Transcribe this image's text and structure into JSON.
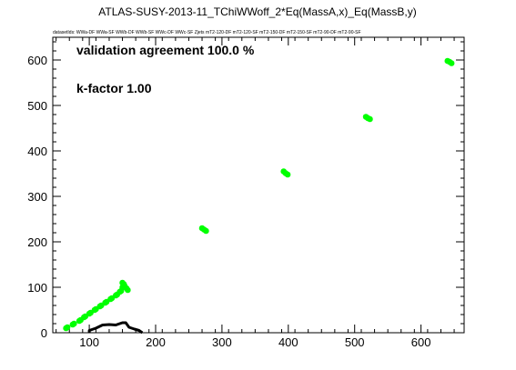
{
  "chart_data": {
    "type": "scatter",
    "title": "ATLAS-SUSY-2013-11_TChiWWoff_2*Eq(MassA,x)_Eq(MassB,y)",
    "subtitle": "datasetIds: WWa-DF WWa-SF WWb-DF WWb-SF WWc-DF WWc-SF Zjets mT2-120-DF mT2-120-SF mT2-150-DF mT2-150-SF mT2-90-DF mT2-90-SF",
    "annotations": [
      "validation agreement 100.0 %",
      "k-factor 1.00"
    ],
    "xlim": [
      45,
      665
    ],
    "ylim": [
      0,
      650
    ],
    "xticks": [
      100,
      200,
      300,
      400,
      500,
      600
    ],
    "yticks": [
      0,
      100,
      200,
      300,
      400,
      500,
      600
    ],
    "marker_color": "#00ff00",
    "line_color": "#000000",
    "series": [
      {
        "points": [
          [
            65,
            10
          ],
          [
            67,
            12
          ],
          [
            75,
            18
          ],
          [
            77,
            20
          ],
          [
            85,
            26
          ],
          [
            87,
            28
          ],
          [
            92,
            34
          ],
          [
            94,
            36
          ],
          [
            100,
            42
          ],
          [
            102,
            44
          ],
          [
            108,
            50
          ],
          [
            110,
            52
          ],
          [
            116,
            58
          ],
          [
            118,
            60
          ],
          [
            124,
            66
          ],
          [
            126,
            68
          ],
          [
            132,
            74
          ],
          [
            134,
            76
          ],
          [
            140,
            82
          ],
          [
            142,
            84
          ],
          [
            146,
            90
          ],
          [
            148,
            92
          ],
          [
            150,
            100
          ],
          [
            153,
            104
          ],
          [
            156,
            98
          ],
          [
            158,
            94
          ],
          [
            150,
            110
          ],
          [
            152,
            107
          ],
          [
            270,
            230
          ],
          [
            273,
            227
          ],
          [
            276,
            224
          ],
          [
            393,
            355
          ],
          [
            396,
            351
          ],
          [
            399,
            348
          ],
          [
            517,
            475
          ],
          [
            520,
            472
          ],
          [
            523,
            470
          ],
          [
            640,
            598
          ],
          [
            643,
            596
          ],
          [
            646,
            593
          ]
        ]
      },
      {
        "type": "line",
        "points": [
          [
            100,
            0
          ],
          [
            100,
            5
          ],
          [
            110,
            10
          ],
          [
            120,
            17
          ],
          [
            130,
            18
          ],
          [
            140,
            17
          ],
          [
            150,
            22
          ],
          [
            155,
            22
          ],
          [
            160,
            12
          ],
          [
            168,
            8
          ],
          [
            175,
            5
          ],
          [
            180,
            0
          ]
        ]
      }
    ]
  }
}
